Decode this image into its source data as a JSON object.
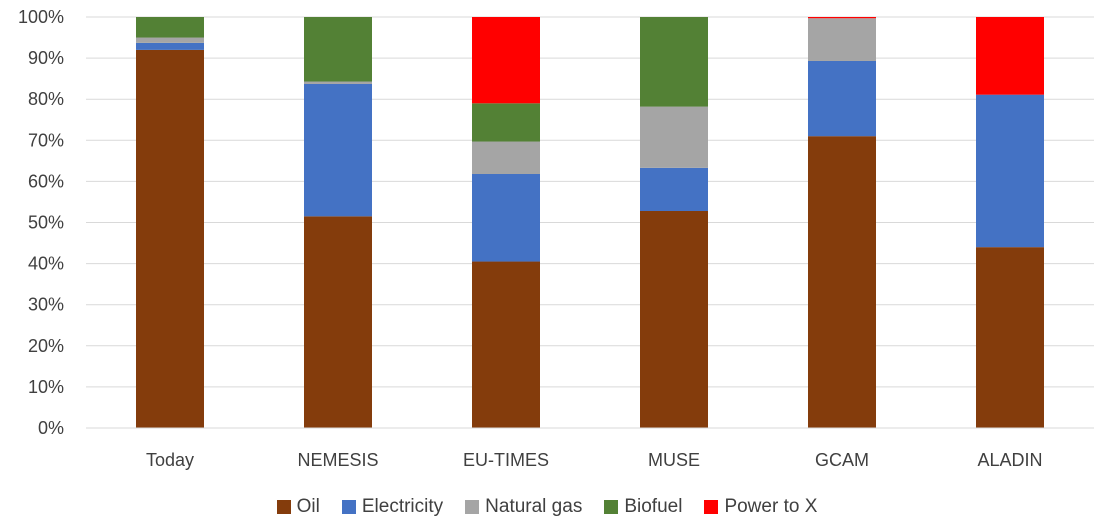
{
  "chart_data": {
    "type": "bar",
    "stacked": true,
    "categories": [
      "Today",
      "NEMESIS",
      "EU-TIMES",
      "MUSE",
      "GCAM",
      "ALADIN"
    ],
    "series": [
      {
        "name": "Oil",
        "color": "#843c0c",
        "values": [
          92,
          51.5,
          40.5,
          52.8,
          71,
          44
        ]
      },
      {
        "name": "Electricity",
        "color": "#4472c4",
        "values": [
          1.7,
          32.2,
          21.3,
          10.5,
          18.3,
          37.1
        ]
      },
      {
        "name": "Natural gas",
        "color": "#a5a5a5",
        "values": [
          1.3,
          0.6,
          7.9,
          14.9,
          10.4,
          0
        ]
      },
      {
        "name": "Biofuel",
        "color": "#538135",
        "values": [
          5,
          15.7,
          9.3,
          21.8,
          0,
          0
        ]
      },
      {
        "name": "Power to X",
        "color": "#ff0000",
        "values": [
          0,
          0,
          21,
          0,
          0.3,
          18.9
        ]
      }
    ],
    "ylim": [
      0,
      100
    ],
    "yticks": [
      "0%",
      "10%",
      "20%",
      "30%",
      "40%",
      "50%",
      "60%",
      "70%",
      "80%",
      "90%",
      "100%"
    ],
    "grid": true,
    "legend": "bottom"
  }
}
